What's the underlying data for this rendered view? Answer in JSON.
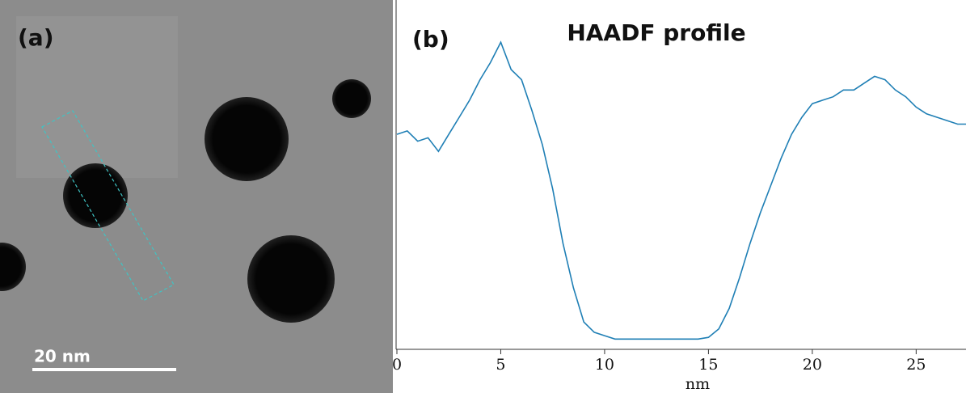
{
  "panel_a": {
    "label": "(a)",
    "scale_bar": "20 nm"
  },
  "chart_data": {
    "type": "line",
    "panel_label": "(b)",
    "title": "HAADF profile",
    "x_label": "nm",
    "color": "#1f7fb5",
    "x": [
      0,
      0.5,
      1,
      1.5,
      2,
      2.5,
      3,
      3.5,
      4,
      4.5,
      5,
      5.5,
      6,
      6.5,
      7,
      7.5,
      8,
      8.5,
      9,
      9.5,
      10,
      10.5,
      11,
      11.5,
      12,
      12.5,
      13,
      13.5,
      14,
      14.5,
      15,
      15.5,
      16,
      16.5,
      17,
      17.5,
      18,
      18.5,
      19,
      19.5,
      20,
      20.5,
      21,
      21.5,
      22,
      22.5,
      23,
      23.5,
      24,
      24.5,
      25,
      25.5,
      26,
      26.5,
      27,
      27.4
    ],
    "values": [
      63,
      64,
      61,
      62,
      58,
      63,
      68,
      73,
      79,
      84,
      90,
      82,
      79,
      70,
      60,
      47,
      31,
      18,
      8,
      5,
      4,
      3,
      3,
      3,
      3,
      3,
      3,
      3,
      3,
      3,
      3.5,
      6,
      12,
      21,
      31,
      40,
      48,
      56,
      63,
      68,
      72,
      73,
      74,
      76,
      76,
      78,
      80,
      79,
      76,
      74,
      71,
      69,
      68,
      67,
      66,
      66
    ],
    "xlim": [
      0,
      27.4
    ],
    "xticks": [
      0,
      5,
      10,
      15,
      20,
      25
    ],
    "ylim": [
      0,
      100
    ]
  }
}
